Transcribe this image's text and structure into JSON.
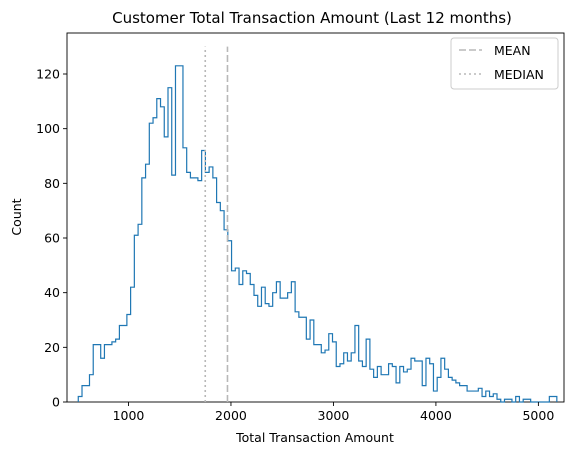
{
  "chart_data": {
    "type": "histogram",
    "title": "Customer Total Transaction Amount (Last 12 months)",
    "xlabel": "Total Transaction Amount",
    "ylabel": "Count",
    "xlim": [
      400,
      5250
    ],
    "ylim": [
      0,
      135
    ],
    "xticks": [
      1000,
      2000,
      3000,
      4000,
      5000
    ],
    "yticks": [
      0,
      20,
      40,
      60,
      80,
      100,
      120
    ],
    "histtype": "step",
    "color": "#1f77b4",
    "bin_start": 510,
    "bin_end": 5180,
    "counts": [
      2,
      6,
      6,
      10,
      21,
      21,
      16,
      21,
      21,
      22,
      23,
      28,
      28,
      32,
      42,
      61,
      65,
      82,
      87,
      102,
      104,
      111,
      108,
      97,
      115,
      83,
      123,
      123,
      93,
      84,
      82,
      82,
      81,
      92,
      84,
      86,
      82,
      73,
      70,
      63,
      59,
      48,
      49,
      43,
      48,
      47,
      43,
      39,
      35,
      42,
      36,
      35,
      40,
      44,
      38,
      38,
      40,
      44,
      33,
      31,
      31,
      23,
      30,
      21,
      21,
      18,
      19,
      25,
      22,
      13,
      14,
      18,
      15,
      18,
      28,
      15,
      13,
      23,
      12,
      9,
      13,
      10,
      10,
      14,
      13,
      7,
      13,
      11,
      12,
      16,
      15,
      15,
      6,
      16,
      14,
      4,
      9,
      16,
      12,
      9,
      8,
      7,
      6,
      6,
      4,
      4,
      4,
      5,
      2,
      4,
      2,
      3,
      1,
      0,
      1,
      1,
      0,
      2,
      0,
      1,
      1,
      0,
      0,
      0,
      0,
      0,
      2,
      2
    ],
    "reference_lines": [
      {
        "name": "MEAN",
        "x": 1966,
        "style": "dashed",
        "color": "#b8b8b8"
      },
      {
        "name": "MEDIAN",
        "x": 1749,
        "style": "dotted",
        "color": "#b8b8b8"
      }
    ],
    "reference_line_top": 130,
    "legend": {
      "placement": "top-right",
      "entries": [
        "MEAN",
        "MEDIAN"
      ]
    }
  }
}
